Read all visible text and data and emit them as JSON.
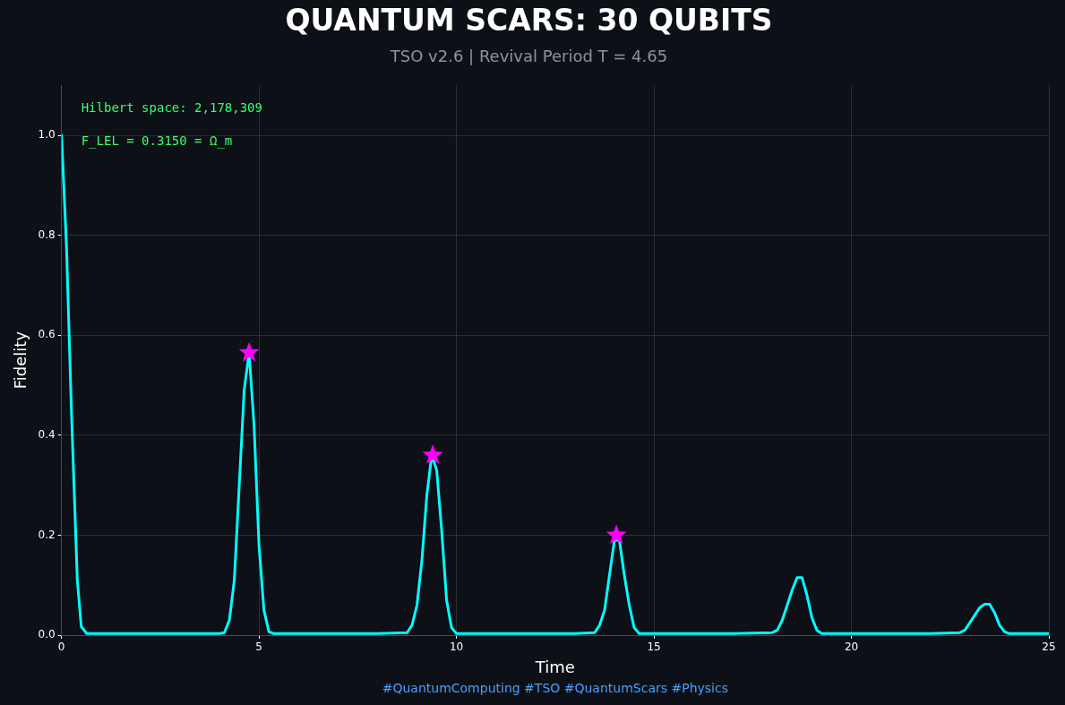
{
  "chart_data": {
    "type": "line",
    "title": "QUANTUM SCARS: 30 QUBITS",
    "subtitle": "TSO v2.6 | Revival Period T = 4.65",
    "xlabel": "Time",
    "ylabel": "Fidelity",
    "annotations": [
      "Hilbert space: 2,178,309",
      "F_LEL = 0.3150 = Ω_m",
      "#QuantumComputing #TSO #QuantumScars #Physics"
    ],
    "series": [
      {
        "color": "#00ffff",
        "x": [
          0,
          0.125,
          0.25,
          0.4,
          0.5,
          0.64,
          1,
          2,
          3,
          4,
          4.125,
          4.25,
          4.375,
          4.5,
          4.625,
          4.75,
          4.875,
          5.0,
          5.125,
          5.25,
          5.375,
          6,
          7,
          8,
          8.75,
          8.875,
          9.0,
          9.125,
          9.25,
          9.375,
          9.5,
          9.625,
          9.75,
          9.875,
          10.0,
          11,
          12,
          13,
          13.5,
          13.625,
          13.75,
          13.875,
          14.0,
          14.125,
          14.25,
          14.375,
          14.5,
          14.625,
          15,
          16,
          17,
          18.0,
          18.125,
          18.25,
          18.375,
          18.5,
          18.625,
          18.75,
          18.875,
          19.0,
          19.125,
          19.25,
          20,
          21,
          22,
          22.75,
          22.875,
          23.0,
          23.125,
          23.25,
          23.375,
          23.5,
          23.625,
          23.75,
          23.875,
          24.0,
          25
        ],
        "values": [
          1.0,
          0.78,
          0.45,
          0.11,
          0.017,
          0.003,
          0.003,
          0.003,
          0.003,
          0.003,
          0.005,
          0.03,
          0.11,
          0.3,
          0.49,
          0.565,
          0.42,
          0.18,
          0.05,
          0.007,
          0.003,
          0.003,
          0.003,
          0.003,
          0.005,
          0.02,
          0.06,
          0.15,
          0.28,
          0.36,
          0.33,
          0.21,
          0.07,
          0.015,
          0.003,
          0.003,
          0.003,
          0.003,
          0.005,
          0.02,
          0.05,
          0.12,
          0.19,
          0.19,
          0.12,
          0.06,
          0.015,
          0.003,
          0.003,
          0.003,
          0.003,
          0.005,
          0.01,
          0.03,
          0.06,
          0.09,
          0.115,
          0.115,
          0.08,
          0.035,
          0.01,
          0.003,
          0.003,
          0.003,
          0.003,
          0.005,
          0.01,
          0.025,
          0.04,
          0.055,
          0.062,
          0.062,
          0.045,
          0.02,
          0.007,
          0.003,
          0.003
        ]
      },
      {
        "type": "scatter",
        "color": "#ff00ff",
        "marker": "star",
        "x": [
          4.75,
          9.4,
          14.05
        ],
        "values": [
          0.565,
          0.36,
          0.2
        ]
      }
    ],
    "xlim": [
      0,
      25
    ],
    "xticks": [
      0,
      5,
      10,
      15,
      20,
      25
    ],
    "ylim": [
      0,
      1.1
    ],
    "yticks": [
      {
        "value": 0,
        "label": "0.0"
      },
      0.2,
      0.4,
      0.6,
      0.8,
      {
        "value": 1,
        "label": "1.0"
      }
    ],
    "grid": true,
    "legend": false
  }
}
